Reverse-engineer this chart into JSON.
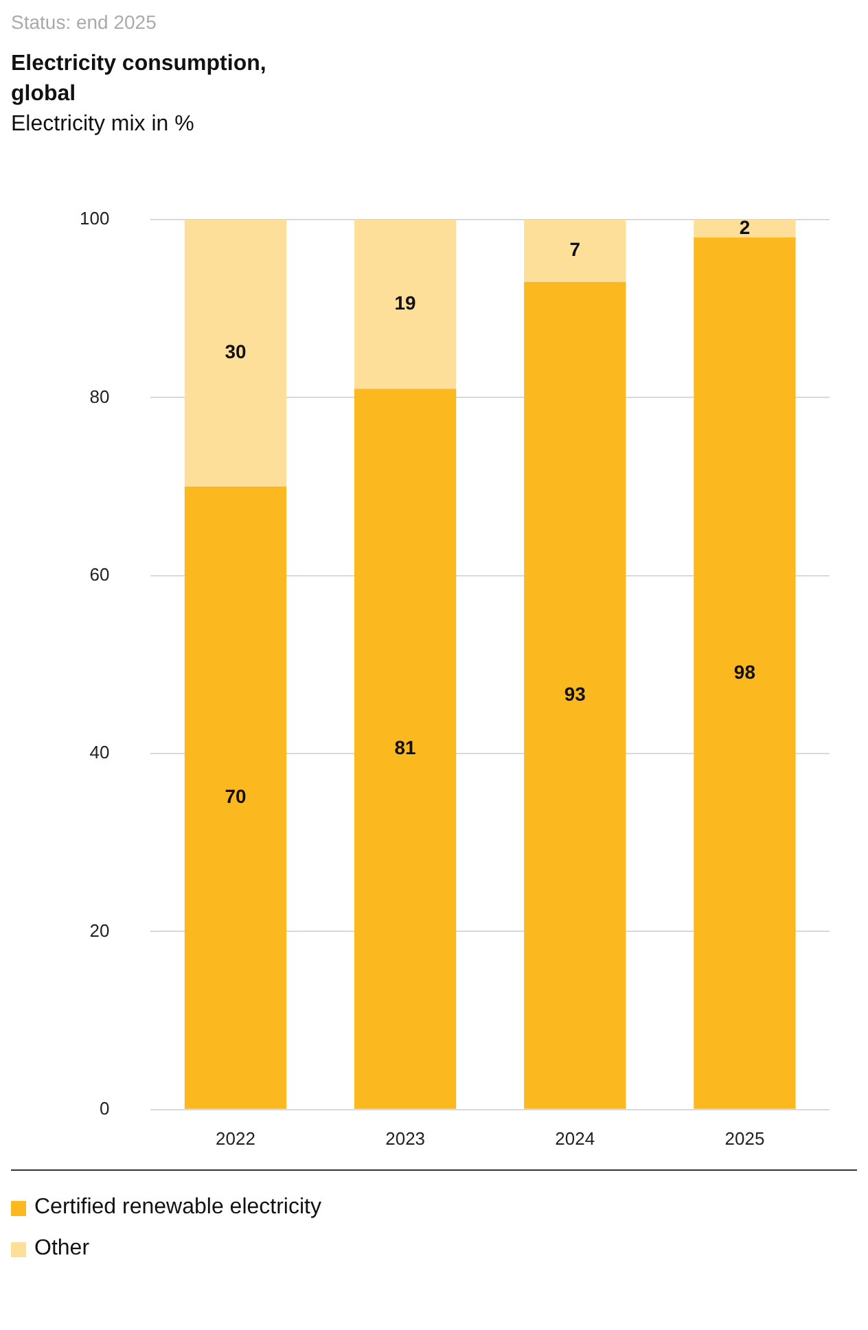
{
  "chart_data": {
    "type": "bar",
    "title": "Electricity consumption,\nglobal",
    "subtitle": "Electricity mix in %",
    "annotations": [
      "Status: end 2025"
    ],
    "categories": [
      "2022",
      "2023",
      "2024",
      "2025"
    ],
    "series": [
      {
        "name": "Certified renewable electricity",
        "color": "#fcb81f",
        "values": [
          70,
          81,
          93,
          98
        ]
      },
      {
        "name": "Other",
        "color": "#fddf99",
        "values": [
          30,
          19,
          7,
          2
        ]
      }
    ],
    "stacked": true,
    "ylim": [
      0,
      100
    ],
    "yticks": [
      0,
      20,
      40,
      60,
      80,
      100
    ],
    "grid": "y",
    "legend": "bottom",
    "data_labels": true
  }
}
